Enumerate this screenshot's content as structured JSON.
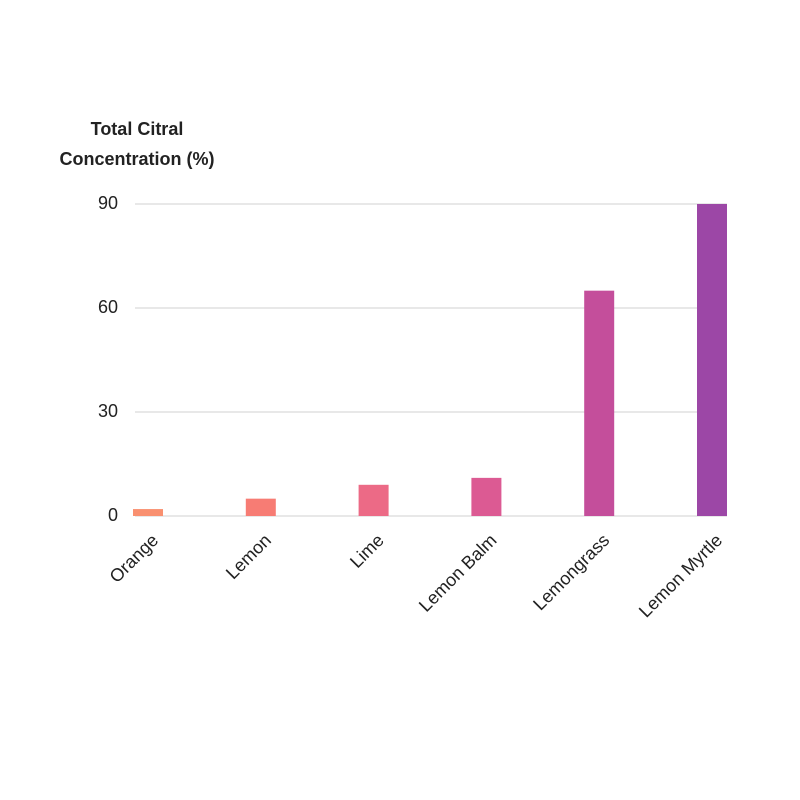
{
  "chart_data": {
    "type": "bar",
    "title": [
      "Total Citral",
      "Concentration (%)"
    ],
    "categories": [
      "Orange",
      "Lemon",
      "Lime",
      "Lemon Balm",
      "Lemongrass",
      "Lemon Myrtle"
    ],
    "values": [
      2,
      5,
      9,
      11,
      65,
      90
    ],
    "colors": [
      "#f99070",
      "#f77c74",
      "#ec6a86",
      "#dc5a93",
      "#c44e9b",
      "#9c47a6"
    ],
    "ylim": [
      0,
      90
    ],
    "yticks": [
      0,
      30,
      60,
      90
    ],
    "grid": true
  }
}
